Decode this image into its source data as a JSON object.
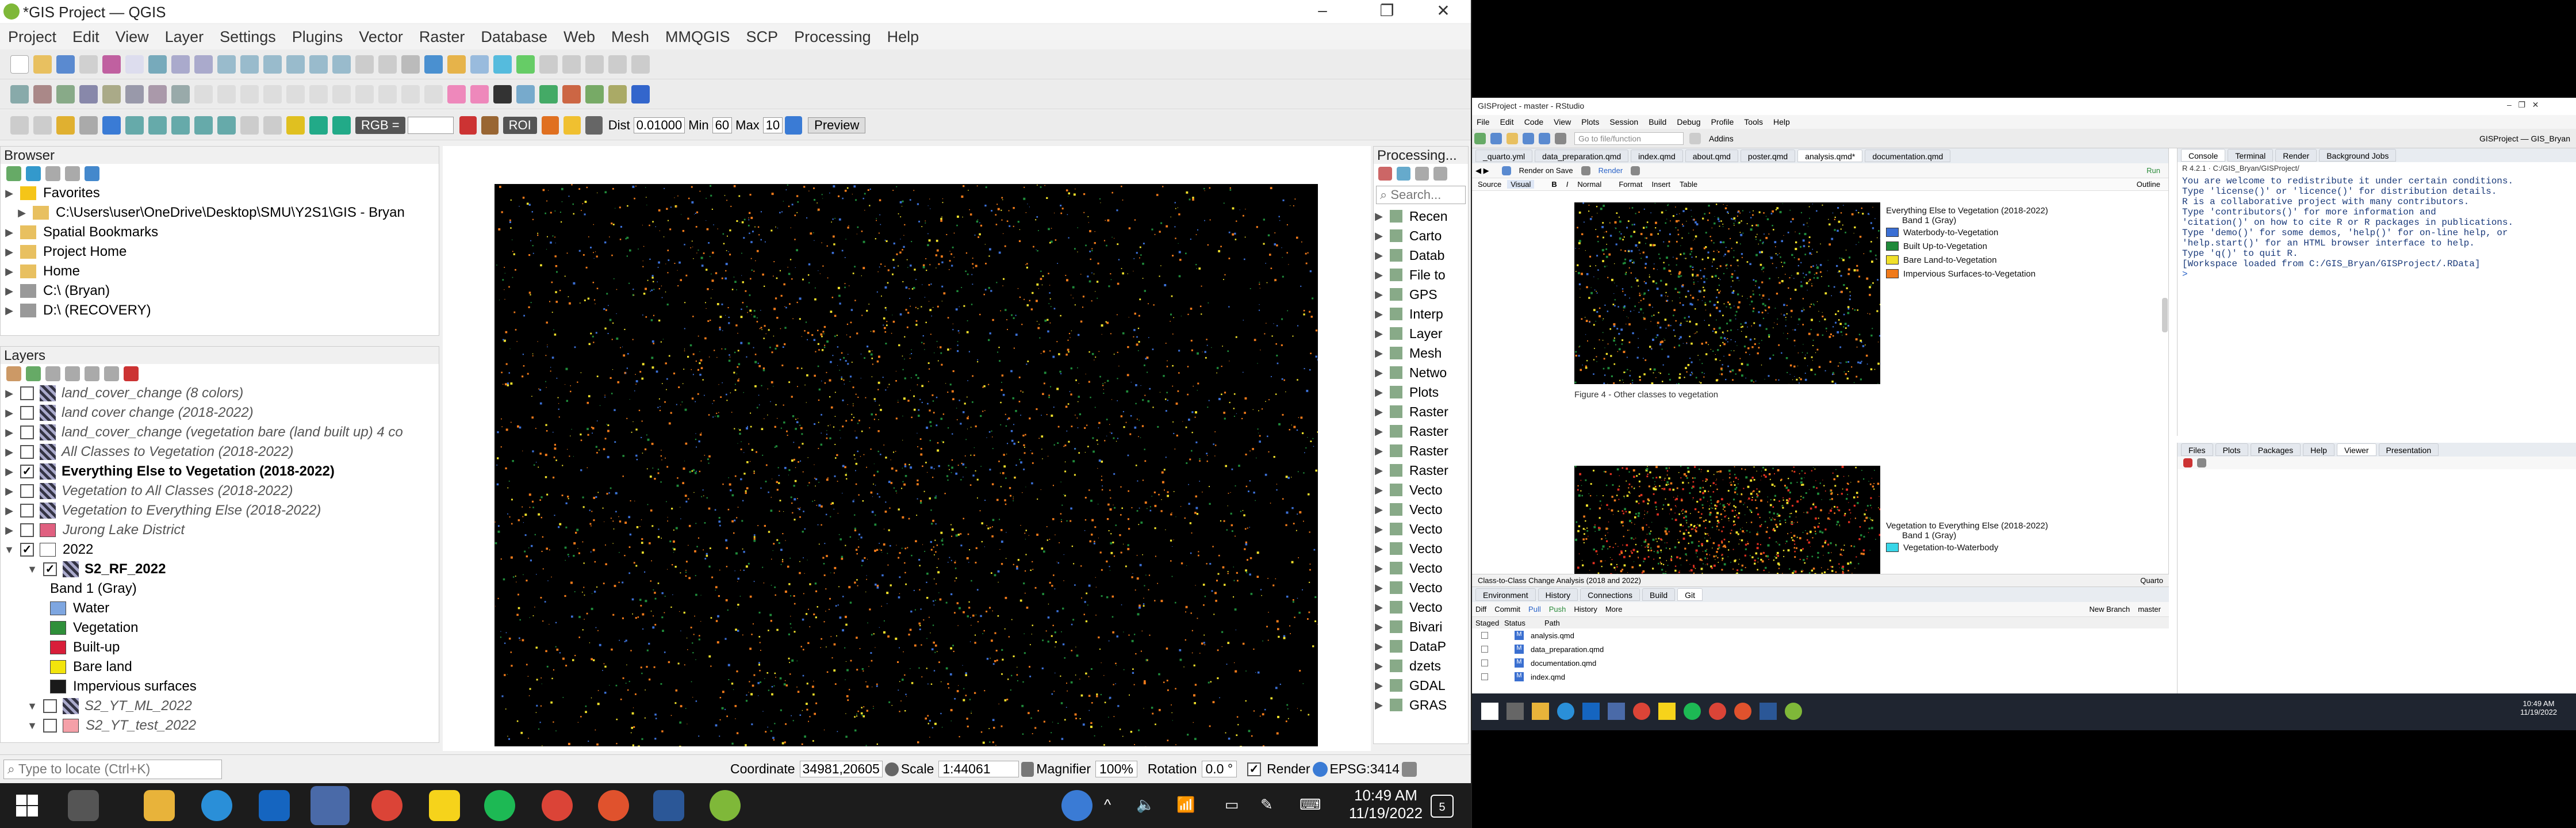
{
  "qgis": {
    "title": "*GIS Project — QGIS",
    "menu": [
      "Project",
      "Edit",
      "View",
      "Layer",
      "Settings",
      "Plugins",
      "Vector",
      "Raster",
      "Database",
      "Web",
      "Mesh",
      "MMQGIS",
      "SCP",
      "Processing",
      "Help"
    ],
    "scp_toolbar": {
      "rgb_label": "RGB =",
      "roi_label": "ROI",
      "dist_label": "Dist",
      "dist_value": "0.01000",
      "min_label": "Min",
      "min_value": "60",
      "max_label": "Max",
      "max_value": "10",
      "preview_label": "Preview"
    },
    "browser": {
      "title": "Browser",
      "items": [
        {
          "label": "Favorites",
          "icon": "star-icon",
          "expand": true
        },
        {
          "label": "C:\\Users\\user\\OneDrive\\Desktop\\SMU\\Y2S1\\GIS - Bryan",
          "icon": "folder-icon",
          "expand": true
        },
        {
          "label": "Spatial Bookmarks",
          "icon": "bookmark-icon",
          "expand": true
        },
        {
          "label": "Project Home",
          "icon": "folder-icon",
          "expand": true
        },
        {
          "label": "Home",
          "icon": "home-folder-icon",
          "expand": true
        },
        {
          "label": "C:\\ (Bryan)",
          "icon": "drive-icon",
          "expand": true
        },
        {
          "label": "D:\\ (RECOVERY)",
          "icon": "drive-icon",
          "expand": true
        }
      ]
    },
    "layers": {
      "title": "Layers",
      "items": [
        {
          "label": "land_cover_change (8 colors)",
          "checked": false,
          "style": "italic",
          "indent": 0
        },
        {
          "label": "land cover change (2018-2022)",
          "checked": false,
          "style": "italic",
          "indent": 0
        },
        {
          "label": "land_cover_change (vegetation bare (land built up) 4 co",
          "checked": false,
          "style": "italic",
          "indent": 0
        },
        {
          "label": "All Classes to Vegetation (2018-2022)",
          "checked": false,
          "style": "italic",
          "indent": 0
        },
        {
          "label": "Everything Else to Vegetation (2018-2022)",
          "checked": true,
          "style": "bold",
          "indent": 0
        },
        {
          "label": "Vegetation to All Classes (2018-2022)",
          "checked": false,
          "style": "italic",
          "indent": 0
        },
        {
          "label": "Vegetation to Everything Else (2018-2022)",
          "checked": false,
          "style": "italic",
          "indent": 0
        },
        {
          "label": "Jurong Lake District",
          "checked": false,
          "style": "italic",
          "indent": 0,
          "swatch": "#e06080"
        },
        {
          "label": "2022",
          "checked": true,
          "style": "normal",
          "indent": 0,
          "group": true
        },
        {
          "label": "S2_RF_2022",
          "checked": true,
          "style": "bold",
          "indent": 1
        },
        {
          "label": "Band 1 (Gray)",
          "style": "normal",
          "indent": 2,
          "plain": true
        },
        {
          "label": "Water",
          "style": "normal",
          "indent": 2,
          "swatch": "#7ea6e0"
        },
        {
          "label": "Vegetation",
          "style": "normal",
          "indent": 2,
          "swatch": "#2f8f3a"
        },
        {
          "label": "Built-up",
          "style": "normal",
          "indent": 2,
          "swatch": "#d81e3a"
        },
        {
          "label": "Bare land",
          "style": "normal",
          "indent": 2,
          "swatch": "#f2e40c"
        },
        {
          "label": "Impervious surfaces",
          "style": "normal",
          "indent": 2,
          "swatch": "#1a1a1a"
        },
        {
          "label": "S2_YT_ML_2022",
          "checked": false,
          "style": "italic",
          "indent": 1
        },
        {
          "label": "S2_YT_test_2022",
          "checked": false,
          "style": "italic",
          "indent": 1,
          "swatch": "#f5a0a8"
        }
      ]
    },
    "processing": {
      "title": "Processing...",
      "search_placeholder": "Search...",
      "items": [
        "Recen",
        "Carto",
        "Datab",
        "File to",
        "GPS",
        "Interp",
        "Layer",
        "Mesh",
        "Netwo",
        "Plots",
        "Raster",
        "Raster",
        "Raster",
        "Raster",
        "Vecto",
        "Vecto",
        "Vecto",
        "Vecto",
        "Vecto",
        "Vecto",
        "Vecto",
        "Bivari",
        "DataP",
        "dzets",
        "GDAL",
        "GRAS"
      ]
    },
    "status": {
      "locate_placeholder": "Type to locate (Ctrl+K)",
      "coordinate_label": "Coordinate",
      "coordinate": "34981,20605",
      "scale_label": "Scale",
      "scale": "1:44061",
      "magnifier_label": "Magnifier",
      "magnifier": "100%",
      "rotation_label": "Rotation",
      "rotation": "0.0 °",
      "render_label": "Render",
      "crs": "EPSG:3414"
    }
  },
  "taskbar": {
    "time": "10:49 AM",
    "date": "11/19/2022",
    "notification_count": "5"
  },
  "rstudio": {
    "title": "GISProject - master - RStudio",
    "menu": [
      "File",
      "Edit",
      "Code",
      "View",
      "Plots",
      "Session",
      "Build",
      "Debug",
      "Profile",
      "Tools",
      "Help"
    ],
    "goto_placeholder": "Go to file/function",
    "addins": "Addins",
    "project": "GISProject — GIS_Bryan",
    "doc_tabs": [
      "_quarto.yml",
      "data_preparation.qmd",
      "index.qmd",
      "about.qmd",
      "poster.qmd",
      "analysis.qmd*",
      "documentation.qmd"
    ],
    "doc_toolbar": {
      "source": "Source",
      "visual": "Visual",
      "normal": "Normal",
      "format": "Format",
      "insert": "Insert",
      "table": "Table",
      "outline": "Outline",
      "render_on_save": "Render on Save",
      "render": "Render",
      "run": "Run"
    },
    "fig1_legend": {
      "title": "Everything Else to Vegetation (2018-2022)",
      "band": "Band 1 (Gray)",
      "items": [
        {
          "label": "Waterbody-to-Vegetation",
          "color": "#3b6fd4"
        },
        {
          "label": "Built Up-to-Vegetation",
          "color": "#1f8a3a"
        },
        {
          "label": "Bare Land-to-Vegetation",
          "color": "#f0e02a"
        },
        {
          "label": "Impervious Surfaces-to-Vegetation",
          "color": "#f07a1a"
        }
      ]
    },
    "fig1_caption": "Figure 4 - Other classes to vegetation",
    "fig2_legend": {
      "title": "Vegetation to Everything Else (2018-2022)",
      "band": "Band 1 (Gray)",
      "items": [
        {
          "label": "Vegetation-to-Waterbody",
          "color": "#38d6e8"
        }
      ]
    },
    "doc_status": {
      "section": "Class-to-Class Change Analysis (2018 and 2022)",
      "type": "Quarto"
    },
    "env_tabs": [
      "Environment",
      "History",
      "Connections",
      "Build",
      "Git"
    ],
    "git_toolbar": {
      "diff": "Diff",
      "commit": "Commit",
      "pull": "Pull",
      "push": "Push",
      "history": "History",
      "more": "More",
      "new_branch": "New Branch",
      "branch": "master"
    },
    "git_headers": [
      "Staged",
      "Status",
      "Path"
    ],
    "git_files": [
      "analysis.qmd",
      "data_preparation.qmd",
      "documentation.qmd",
      "index.qmd"
    ],
    "console_tabs": [
      "Console",
      "Terminal",
      "Render",
      "Background Jobs"
    ],
    "console_path": "R 4.2.1 · C:/GIS_Bryan/GISProject/",
    "console_lines": [
      "You are welcome to redistribute it under certain conditions.",
      "Type 'license()' or 'licence()' for distribution details.",
      "",
      "R is a collaborative project with many contributors.",
      "Type 'contributors()' for more information and",
      "'citation()' on how to cite R or R packages in publications.",
      "",
      "Type 'demo()' for some demos, 'help()' for on-line help, or",
      "'help.start()' for an HTML browser interface to help.",
      "Type 'q()' to quit R.",
      "",
      "[Workspace loaded from C:/GIS_Bryan/GISProject/.RData]",
      "",
      ">"
    ],
    "files_tabs": [
      "Files",
      "Plots",
      "Packages",
      "Help",
      "Viewer",
      "Presentation"
    ],
    "taskbar_time": "10:49 AM",
    "taskbar_date": "11/19/2022"
  }
}
